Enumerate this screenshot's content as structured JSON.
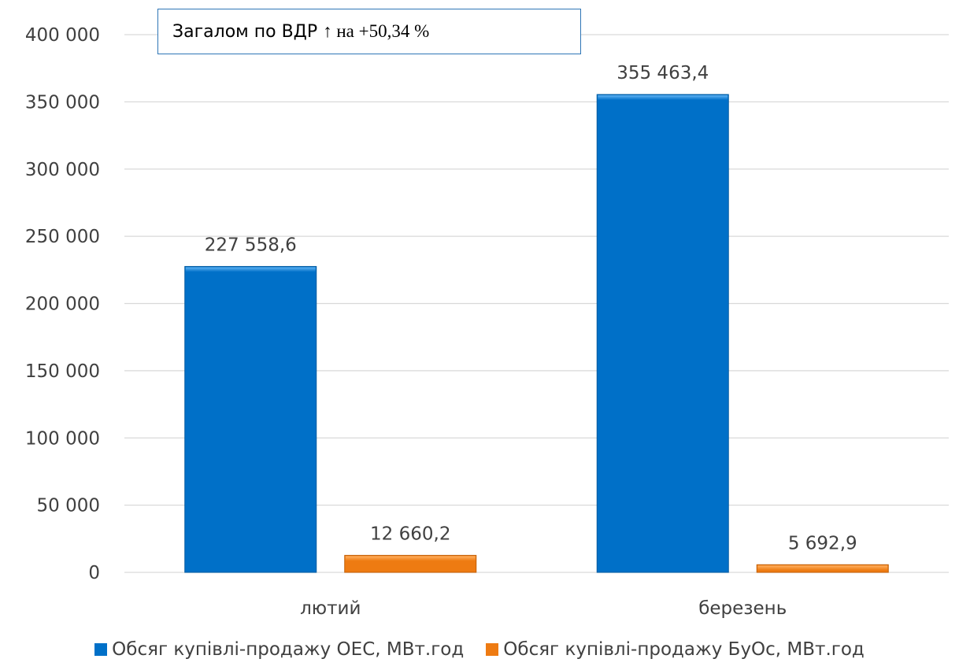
{
  "annotation": {
    "label_sans": "Загалом по ВДР",
    "label_serif": "↑ на +50,34 %"
  },
  "colors": {
    "series_oes": "#0070c8",
    "series_buos": "#ee7b12",
    "grid": "#d9d9d9",
    "annotation_border": "#2e75b6"
  },
  "chart_data": {
    "type": "bar",
    "categories": [
      "лютий",
      "березень"
    ],
    "series": [
      {
        "name": "Обсяг купівлі-продажу ОЕС, МВт.год",
        "values": [
          227558.6,
          355463.4
        ],
        "labels": [
          "227 558,6",
          "355 463,4"
        ]
      },
      {
        "name": "Обсяг купівлі-продажу БуОс, МВт.год",
        "values": [
          12660.2,
          5692.9
        ],
        "labels": [
          "12 660,2",
          "5 692,9"
        ]
      }
    ],
    "ylim": [
      0,
      400000
    ],
    "yticks": [
      0,
      50000,
      100000,
      150000,
      200000,
      250000,
      300000,
      350000,
      400000
    ],
    "ytick_labels": [
      "0",
      "50 000",
      "100 000",
      "150 000",
      "200 000",
      "250 000",
      "300 000",
      "350 000",
      "400 000"
    ],
    "grid": true,
    "legend_position": "bottom"
  }
}
